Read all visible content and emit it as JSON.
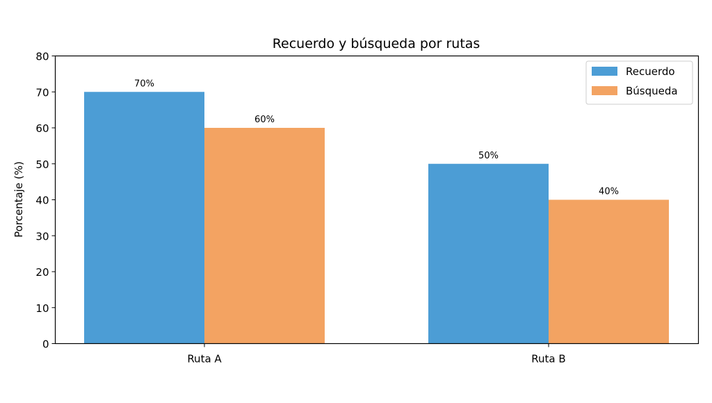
{
  "chart_data": {
    "type": "bar",
    "title": "Recuerdo y búsqueda por rutas",
    "xlabel": "",
    "ylabel": "Porcentaje (%)",
    "ylim": [
      0,
      80
    ],
    "yticks": [
      0,
      10,
      20,
      30,
      40,
      50,
      60,
      70,
      80
    ],
    "categories": [
      "Ruta A",
      "Ruta B"
    ],
    "series": [
      {
        "name": "Recuerdo",
        "values": [
          70,
          50
        ],
        "labels": [
          "70%",
          "50%"
        ],
        "color": "#4c9dd5"
      },
      {
        "name": "Búsqueda",
        "values": [
          60,
          40
        ],
        "labels": [
          "60%",
          "40%"
        ],
        "color": "#f3a362"
      }
    ],
    "grid": false,
    "legend": "top-right"
  }
}
